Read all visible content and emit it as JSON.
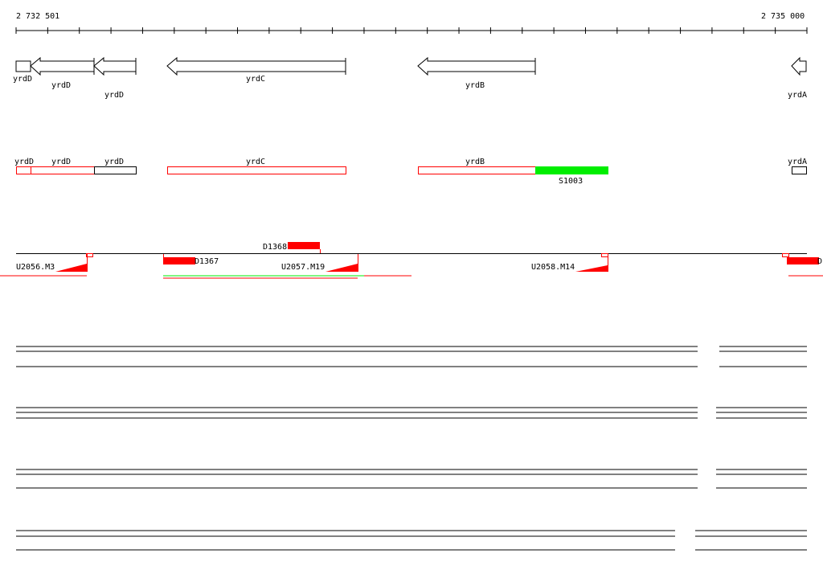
{
  "ruler": {
    "start_label": "2 732 501",
    "end_label": "2 735 000"
  },
  "genes_track": {
    "labels": [
      "yrdD",
      "yrdD",
      "yrdD",
      "yrdC",
      "yrdB",
      "yrdA"
    ]
  },
  "cds_track": {
    "labels": [
      "yrdD",
      "yrdD",
      "yrdD",
      "yrdC",
      "yrdB",
      "yrdA"
    ],
    "highlight_label": "S1003",
    "highlight_color": "#00ee00"
  },
  "segments_track": {
    "labels": [
      "U2056.M3",
      "D1367",
      "D1368",
      "U2057.M19",
      "U2058.M14",
      "D"
    ]
  },
  "colors": {
    "accent": "#ff0000",
    "green": "#00ee00"
  }
}
